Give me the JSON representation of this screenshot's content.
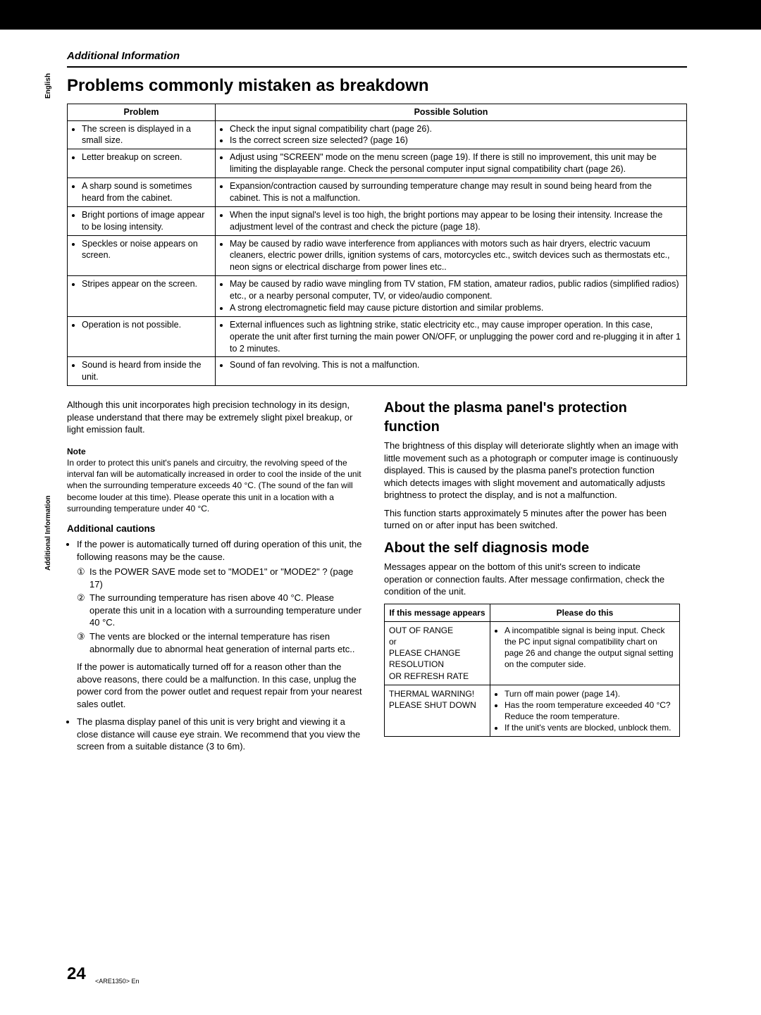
{
  "side": {
    "english": "English",
    "section": "Additional Information"
  },
  "header": {
    "section": "Additional Information"
  },
  "title": "Problems commonly mistaken as breakdown",
  "problems_table": {
    "headers": {
      "problem": "Problem",
      "solution": "Possible Solution"
    },
    "rows": [
      {
        "problem": "The screen is displayed in a small size.",
        "solution": [
          "Check the input signal compatibility chart (page 26).",
          "Is the correct screen size selected? (page 16)"
        ]
      },
      {
        "problem": "Letter breakup on screen.",
        "solution": [
          "Adjust using \"SCREEN\" mode on the menu screen (page 19). If there is still no improvement, this unit may be limiting the displayable range. Check the personal computer input signal compatibility chart (page 26)."
        ]
      },
      {
        "problem": "A sharp sound is sometimes heard from the cabinet.",
        "solution": [
          "Expansion/contraction caused by surrounding temperature change may result in sound being heard from the cabinet. This is not a malfunction."
        ]
      },
      {
        "problem": "Bright portions of image appear to be losing intensity.",
        "solution": [
          "When the input signal's level is too high, the bright portions may appear to be losing their intensity. Increase the adjustment level of the contrast and check the picture (page 18)."
        ]
      },
      {
        "problem": "Speckles or noise appears on screen.",
        "solution": [
          "May be caused by radio wave interference from appliances with motors such as hair dryers, electric vacuum cleaners, electric power drills, ignition systems of cars, motorcycles etc., switch devices such as thermostats etc., neon signs or electrical discharge from power lines etc.."
        ]
      },
      {
        "problem": "Stripes appear on the screen.",
        "solution": [
          "May be caused by radio wave mingling from TV station, FM station, amateur radios, public radios (simplified radios) etc., or a nearby personal computer, TV, or video/audio component.",
          "A strong electromagnetic field may cause picture distortion and similar problems."
        ]
      },
      {
        "problem": "Operation is not possible.",
        "solution": [
          "External influences such as lightning strike, static electricity etc., may cause improper operation. In this case, operate the unit after first turning the main power ON/OFF, or unplugging the power cord and re-plugging it in after 1 to 2 minutes."
        ]
      },
      {
        "problem": "Sound is heard from inside the unit.",
        "solution": [
          "Sound of fan revolving. This is not a malfunction."
        ]
      }
    ]
  },
  "left": {
    "precision_para": "Although this unit incorporates high precision technology in its design, please understand that there may be extremely slight pixel breakup, or light emission fault.",
    "note_label": "Note",
    "note_text": "In order to protect this unit's panels and circuitry, the revolving speed of the interval fan will be automatically increased in order to cool the inside of the unit when the surrounding temperature exceeds 40 °C. (The sound of the fan will become louder at this time). Please operate this unit in a location with a surrounding temperature under 40 °C.",
    "cautions_heading": "Additional cautions",
    "cautions_intro": "If the power is automatically turned off during operation of this unit, the following reasons may be the cause.",
    "cautions_list": [
      "Is the POWER SAVE mode set to \"MODE1\" or \"MODE2\" ? (page 17)",
      "The surrounding temperature has risen above 40 °C. Please operate this unit in a location with a surrounding temperature under 40 °C.",
      "The vents are blocked or the internal temperature has risen abnormally due to abnormal heat generation of internal parts etc.."
    ],
    "cautions_after": "If the power is automatically turned off for a reason other than the above reasons, there could be a malfunction. In this case, unplug the power cord from the power outlet and request repair from your nearest sales outlet.",
    "bright_bullet": "The plasma display panel of this unit is very bright and viewing it a close distance will cause eye strain. We recommend that you view the screen from a suitable distance (3 to 6m)."
  },
  "right": {
    "plasma_heading": "About the plasma panel's protection function",
    "plasma_p1": "The brightness of this display will deteriorate slightly when an image with little movement such as a photograph or computer image is continuously displayed. This is caused by the plasma panel's protection function which detects images with slight movement and automatically adjusts brightness to protect the display, and is not a malfunction.",
    "plasma_p2": "This function starts approximately 5 minutes after the power has been turned on or after input has been switched.",
    "selfdiag_heading": "About the self diagnosis mode",
    "selfdiag_intro": "Messages appear on the bottom of this unit's screen to indicate operation or connection faults. After message confirmation, check the condition of the unit.",
    "diag_table": {
      "headers": {
        "msg": "If this message appears",
        "action": "Please do this"
      },
      "rows": [
        {
          "msg": "OUT OF RANGE\nor\nPLEASE CHANGE RESOLUTION\nOR REFRESH RATE",
          "action": [
            "A incompatible signal is being input. Check the PC input signal compatibility chart on page 26 and change the output signal setting on the computer side."
          ]
        },
        {
          "msg": "THERMAL WARNING! PLEASE SHUT DOWN",
          "action": [
            "Turn off main power (page 14).",
            "Has the room temperature exceeded 40 °C? Reduce the room temperature.",
            "If the unit's vents are blocked, unblock them."
          ]
        }
      ]
    }
  },
  "footer": {
    "page": "24",
    "code": "<ARE1350> En"
  }
}
